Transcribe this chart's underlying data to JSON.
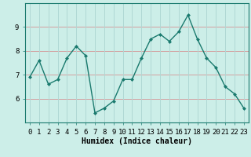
{
  "x": [
    0,
    1,
    2,
    3,
    4,
    5,
    6,
    7,
    8,
    9,
    10,
    11,
    12,
    13,
    14,
    15,
    16,
    17,
    18,
    19,
    20,
    21,
    22,
    23
  ],
  "y": [
    6.9,
    7.6,
    6.6,
    6.8,
    7.7,
    8.2,
    7.8,
    5.4,
    5.6,
    5.9,
    6.8,
    6.8,
    7.7,
    8.5,
    8.7,
    8.4,
    8.8,
    9.5,
    8.5,
    7.7,
    7.3,
    6.5,
    6.2,
    5.6
  ],
  "line_color": "#1a7a6e",
  "marker": "D",
  "marker_size": 2.0,
  "bg_color": "#cceee8",
  "grid_color_h": "#d4a0a0",
  "grid_color_v": "#b0d8d4",
  "xlabel": "Humidex (Indice chaleur)",
  "ylim": [
    5.0,
    10.0
  ],
  "xlim": [
    -0.5,
    23.5
  ],
  "yticks": [
    6,
    7,
    8,
    9
  ],
  "xtick_labels": [
    "0",
    "1",
    "2",
    "3",
    "4",
    "5",
    "6",
    "7",
    "8",
    "9",
    "10",
    "11",
    "12",
    "13",
    "14",
    "15",
    "16",
    "17",
    "18",
    "19",
    "20",
    "21",
    "22",
    "23"
  ],
  "line_width": 1.0,
  "xlabel_fontsize": 7,
  "tick_fontsize": 6.5
}
